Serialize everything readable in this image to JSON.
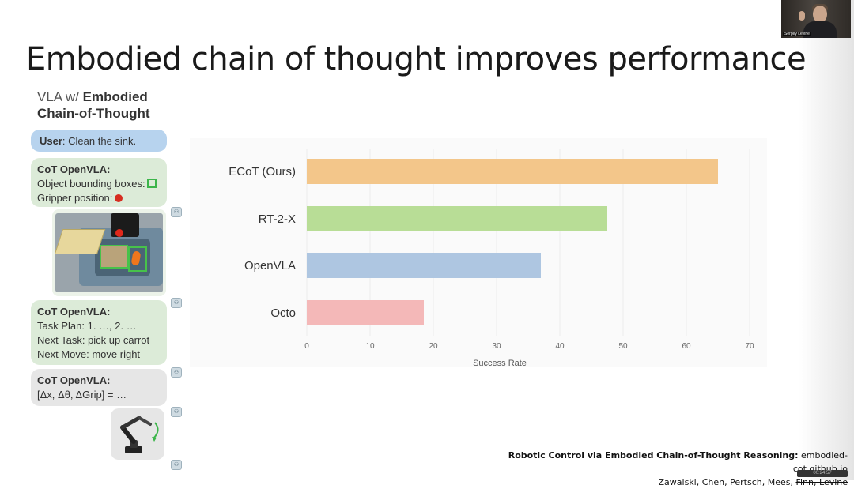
{
  "slide": {
    "title_bold": "Embodied",
    "title_rest": " chain of thought improves performance"
  },
  "webcam": {
    "name_tag": "Sergey Levine"
  },
  "left_panel": {
    "heading_prefix": "VLA w/ ",
    "heading_bold_1": "Embodied",
    "heading_bold_2": "Chain-of-Thought",
    "user_label": "User",
    "user_text": ": Clean the sink.",
    "cot1": {
      "speaker": "CoT OpenVLA",
      "line1": "Object bounding boxes:",
      "line2": "Gripper position:"
    },
    "cot2": {
      "speaker": "CoT OpenVLA",
      "line1": "Task Plan: 1. …, 2. …",
      "line2": "Next Task: pick up carrot",
      "line3": "Next Move: move right"
    },
    "cot3": {
      "speaker": "CoT OpenVLA",
      "line1": "[Δx, Δθ, ΔGrip] = …"
    }
  },
  "colors": {
    "ecot": "#f3c68a",
    "rt2x": "#b8dd96",
    "openvla": "#aec6e1",
    "octo": "#f4b8b8"
  },
  "chart_data": {
    "type": "bar",
    "orientation": "horizontal",
    "categories": [
      "ECoT (Ours)",
      "RT-2-X",
      "OpenVLA",
      "Octo"
    ],
    "values": [
      65,
      47.5,
      37,
      18.5
    ],
    "xlabel": "Success Rate",
    "xlim": [
      0,
      70
    ],
    "xticks": [
      0,
      10,
      20,
      30,
      40,
      50,
      60,
      70
    ],
    "grid": true
  },
  "citation": {
    "title": "Robotic Control via Embodied Chain-of-Thought Reasoning:",
    "url": " embodied-cot.github.io",
    "authors": "Zawalski, Chen, Pertsch, Mees, ",
    "authors_strike": "Finn, Levine"
  },
  "overlay_tag": "00:24:57"
}
